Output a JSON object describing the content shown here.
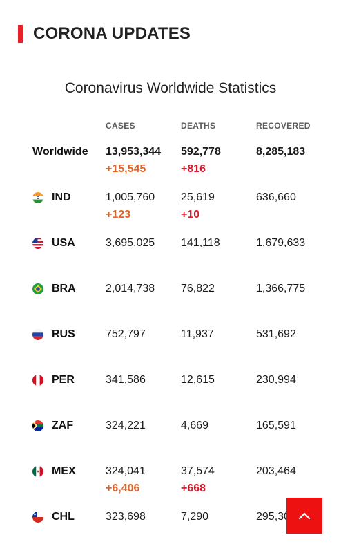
{
  "header": {
    "title": "CORONA UPDATES"
  },
  "widget": {
    "title": "Coronavirus Worldwide Statistics",
    "columns": {
      "cases": "CASES",
      "deaths": "DEATHS",
      "recovered": "RECOVERED"
    }
  },
  "worldwide": {
    "label": "Worldwide",
    "cases": "13,953,344",
    "cases_delta": "+15,545",
    "deaths": "592,778",
    "deaths_delta": "+816",
    "recovered": "8,285,183"
  },
  "countries": [
    {
      "code": "IND",
      "cases": "1,005,760",
      "cases_delta": "+123",
      "deaths": "25,619",
      "deaths_delta": "+10",
      "recovered": "636,660"
    },
    {
      "code": "USA",
      "cases": "3,695,025",
      "deaths": "141,118",
      "recovered": "1,679,633"
    },
    {
      "code": "BRA",
      "cases": "2,014,738",
      "deaths": "76,822",
      "recovered": "1,366,775"
    },
    {
      "code": "RUS",
      "cases": "752,797",
      "deaths": "11,937",
      "recovered": "531,692"
    },
    {
      "code": "PER",
      "cases": "341,586",
      "deaths": "12,615",
      "recovered": "230,994"
    },
    {
      "code": "ZAF",
      "cases": "324,221",
      "deaths": "4,669",
      "recovered": "165,591"
    },
    {
      "code": "MEX",
      "cases": "324,041",
      "cases_delta": "+6,406",
      "deaths": "37,574",
      "deaths_delta": "+668",
      "recovered": "203,464"
    },
    {
      "code": "CHL",
      "cases": "323,698",
      "deaths": "7,290",
      "recovered": "295,301"
    }
  ],
  "icons": {
    "scroll_top": "chevron-up-icon",
    "flags": [
      "india-flag-icon",
      "usa-flag-icon",
      "brazil-flag-icon",
      "russia-flag-icon",
      "peru-flag-icon",
      "south-africa-flag-icon",
      "mexico-flag-icon",
      "chile-flag-icon"
    ]
  },
  "colors": {
    "accent": "#e5222a",
    "cases_delta": "#e0652a",
    "deaths_delta": "#d7192a",
    "scroll_top_bg": "#ee1111"
  }
}
